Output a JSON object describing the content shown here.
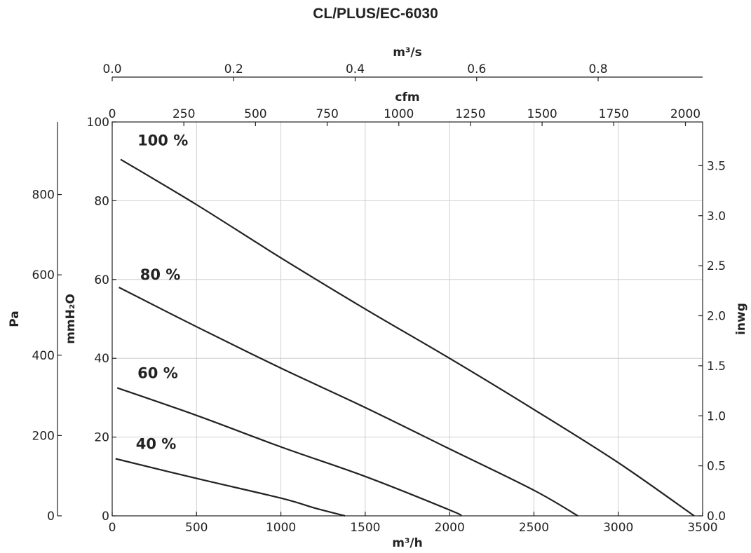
{
  "chart_data": {
    "type": "line",
    "title": "CL/PLUS/EC-6030",
    "x_axes": {
      "primary": {
        "label": "m³/h",
        "lim": [
          0,
          3500
        ],
        "ticks": [
          0,
          500,
          1000,
          1500,
          2000,
          2500,
          3000,
          3500
        ]
      },
      "cfm": {
        "label": "cfm",
        "lim": [
          0,
          2060
        ],
        "ticks": [
          0,
          250,
          500,
          750,
          1000,
          1250,
          1500,
          1750,
          2000
        ]
      },
      "m3s": {
        "label": "m³/s",
        "lim": [
          0,
          0.972
        ],
        "ticks": [
          "0.0",
          "0.2",
          "0.4",
          "0.6",
          "0.8"
        ]
      }
    },
    "y_axes": {
      "primary": {
        "label": "mmH₂O",
        "lim": [
          0,
          100
        ],
        "ticks": [
          0,
          20,
          40,
          60,
          80,
          100
        ]
      },
      "pa": {
        "label": "Pa",
        "lim": [
          0,
          980.7
        ],
        "ticks": [
          0,
          200,
          400,
          600,
          800
        ]
      },
      "inwg": {
        "label": "inwg",
        "lim": [
          0,
          3.937
        ],
        "ticks": [
          "0.0",
          "0.5",
          "1.0",
          "1.5",
          "2.0",
          "2.5",
          "3.0",
          "3.5"
        ]
      }
    },
    "grid": true,
    "series": [
      {
        "name": "100 %",
        "label_at": [
          300,
          94
        ],
        "x": [
          50,
          500,
          1000,
          1500,
          2000,
          2500,
          3000,
          3450
        ],
        "y": [
          90.5,
          79,
          65.5,
          52.5,
          40,
          27,
          13.5,
          0
        ]
      },
      {
        "name": "80 %",
        "label_at": [
          285,
          60
        ],
        "x": [
          40,
          500,
          1000,
          1500,
          2000,
          2500,
          2760
        ],
        "y": [
          58,
          48,
          37.5,
          27.5,
          17,
          6.5,
          0
        ]
      },
      {
        "name": "60 %",
        "label_at": [
          270,
          35
        ],
        "x": [
          30,
          500,
          1000,
          1500,
          2000,
          2070
        ],
        "y": [
          32.5,
          25.5,
          17.5,
          10,
          1.5,
          0
        ]
      },
      {
        "name": "40 %",
        "label_at": [
          260,
          17
        ],
        "x": [
          20,
          500,
          1000,
          1200,
          1380
        ],
        "y": [
          14.5,
          9.5,
          4.5,
          2,
          0
        ]
      }
    ]
  }
}
